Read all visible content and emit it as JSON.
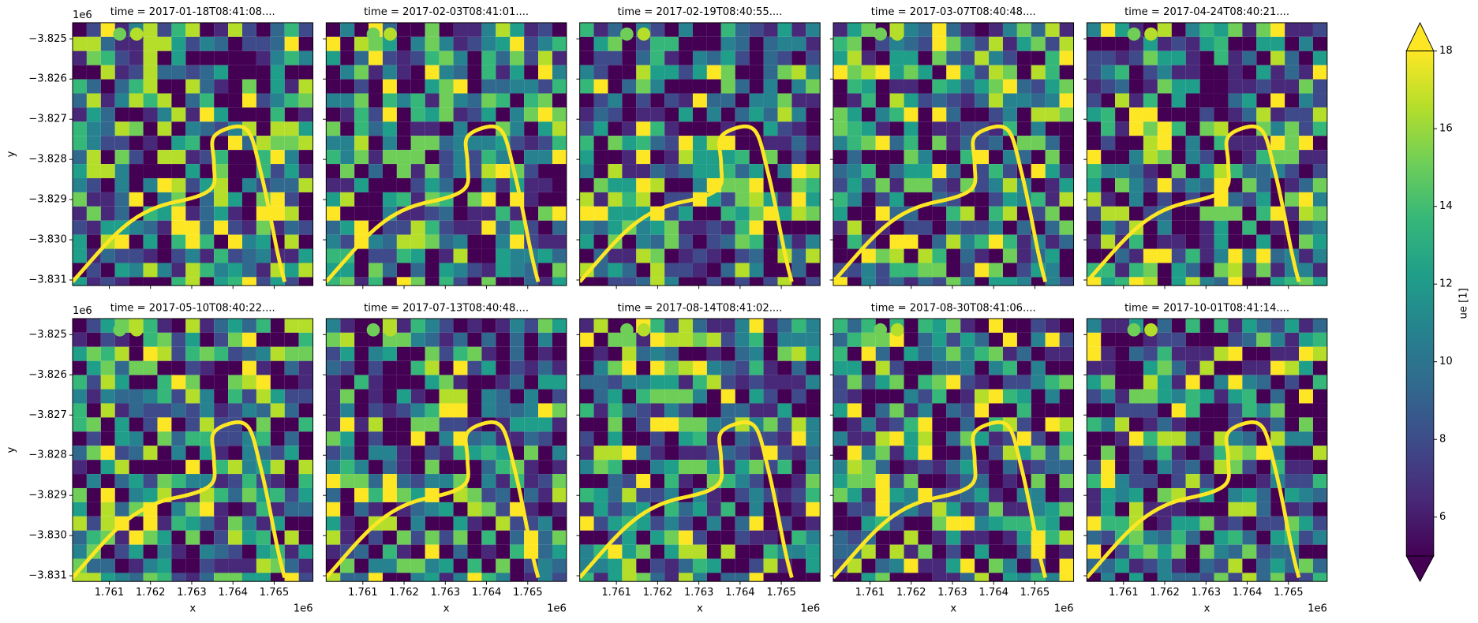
{
  "chart_data": {
    "type": "image_grid",
    "colormap": "viridis",
    "ncols": 5,
    "panels": [
      {
        "title": "time = 2017-01-18T08:41:08...."
      },
      {
        "title": "time = 2017-02-03T08:41:01...."
      },
      {
        "title": "time = 2017-02-19T08:40:55...."
      },
      {
        "title": "time = 2017-03-07T08:40:48...."
      },
      {
        "title": "time = 2017-04-24T08:40:21...."
      },
      {
        "title": "time = 2017-05-10T08:40:22...."
      },
      {
        "title": "time = 2017-07-13T08:40:48...."
      },
      {
        "title": "time = 2017-08-14T08:41:02...."
      },
      {
        "title": "time = 2017-08-30T08:41:06...."
      },
      {
        "title": "time = 2017-10-01T08:41:14...."
      }
    ],
    "xlabel": "x",
    "ylabel": "y",
    "x_offset": "1e6",
    "y_offset": "1e6",
    "xlim": [
      1760110,
      1765940
    ],
    "ylim": [
      -3831140,
      -3824600
    ],
    "xticks": [
      {
        "value": 1761000,
        "label": "1.761"
      },
      {
        "value": 1762000,
        "label": "1.762"
      },
      {
        "value": 1763000,
        "label": "1.763"
      },
      {
        "value": 1764000,
        "label": "1.764"
      },
      {
        "value": 1765000,
        "label": "1.765"
      }
    ],
    "yticks": [
      {
        "value": -3825000,
        "label": "−3.825"
      },
      {
        "value": -3826000,
        "label": "−3.826"
      },
      {
        "value": -3827000,
        "label": "−3.827"
      },
      {
        "value": -3828000,
        "label": "−3.828"
      },
      {
        "value": -3829000,
        "label": "−3.829"
      },
      {
        "value": -3830000,
        "label": "−3.830"
      },
      {
        "value": -3831000,
        "label": "−3.831"
      }
    ],
    "colorbar": {
      "label": "ue [1]",
      "lim": [
        5,
        18
      ],
      "ticks": [
        6,
        8,
        10,
        12,
        14,
        16,
        18
      ],
      "extend": "both"
    }
  }
}
